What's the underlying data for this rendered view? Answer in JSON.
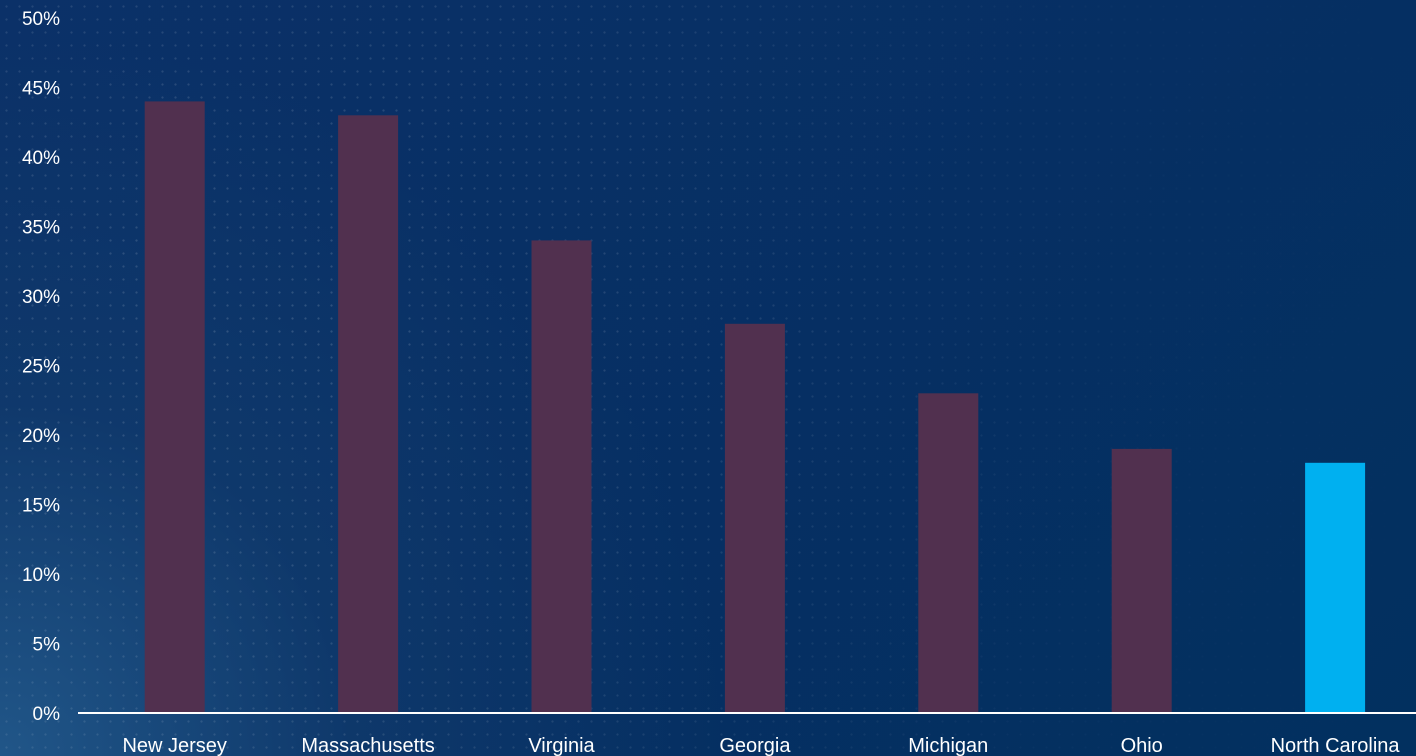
{
  "chart_data": {
    "type": "bar",
    "title": "",
    "xlabel": "",
    "ylabel": "",
    "categories": [
      "New Jersey",
      "Massachusetts",
      "Virginia",
      "Georgia",
      "Michigan",
      "Ohio",
      "North Carolina"
    ],
    "values": [
      44,
      43,
      34,
      28,
      23,
      19,
      18
    ],
    "ylim": [
      0,
      50
    ],
    "y_ticks": [
      "0%",
      "5%",
      "10%",
      "15%",
      "20%",
      "25%",
      "30%",
      "35%",
      "40%",
      "45%",
      "50%"
    ],
    "grid": false,
    "colors": {
      "bar": "#51304f",
      "highlight": "#00b0f0",
      "axis": "#ffffff",
      "text": "#ffffff"
    },
    "highlight_category": "North Carolina"
  }
}
